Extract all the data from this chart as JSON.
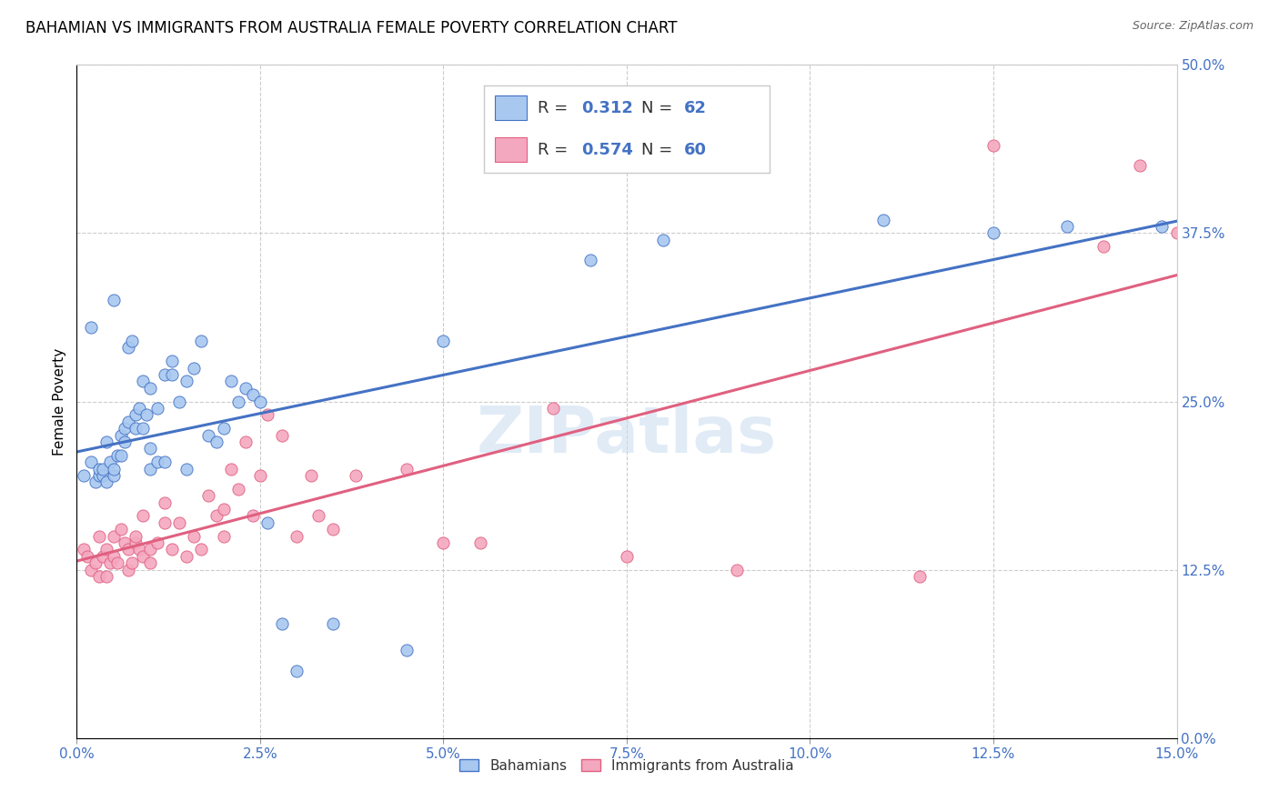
{
  "title": "BAHAMIAN VS IMMIGRANTS FROM AUSTRALIA FEMALE POVERTY CORRELATION CHART",
  "source": "Source: ZipAtlas.com",
  "xlabel_ticks": [
    "0.0%",
    "2.5%",
    "5.0%",
    "7.5%",
    "10.0%",
    "12.5%",
    "15.0%"
  ],
  "xlabel_vals": [
    0.0,
    2.5,
    5.0,
    7.5,
    10.0,
    12.5,
    15.0
  ],
  "ylabel_ticks": [
    "0.0%",
    "12.5%",
    "25.0%",
    "37.5%",
    "50.0%"
  ],
  "ylabel_vals": [
    0.0,
    12.5,
    25.0,
    37.5,
    50.0
  ],
  "xlim": [
    0.0,
    15.0
  ],
  "ylim": [
    0.0,
    50.0
  ],
  "watermark": "ZIPatlas",
  "ylabel_label": "Female Poverty",
  "legend_label1": "Bahamians",
  "legend_label2": "Immigrants from Australia",
  "r1": "0.312",
  "n1": "62",
  "r2": "0.574",
  "n2": "60",
  "color1": "#A8C8F0",
  "color2": "#F4A8C0",
  "line_color1": "#4472C4",
  "line_color2": "#E06080",
  "bahamian_x": [
    0.1,
    0.2,
    0.2,
    0.25,
    0.3,
    0.3,
    0.35,
    0.35,
    0.4,
    0.4,
    0.45,
    0.5,
    0.5,
    0.5,
    0.55,
    0.6,
    0.6,
    0.65,
    0.65,
    0.7,
    0.7,
    0.75,
    0.8,
    0.8,
    0.85,
    0.9,
    0.9,
    0.95,
    1.0,
    1.0,
    1.0,
    1.1,
    1.1,
    1.2,
    1.2,
    1.3,
    1.3,
    1.4,
    1.5,
    1.5,
    1.6,
    1.7,
    1.8,
    1.9,
    2.0,
    2.1,
    2.2,
    2.3,
    2.4,
    2.5,
    2.6,
    2.8,
    3.0,
    3.5,
    4.5,
    5.0,
    7.0,
    8.0,
    11.0,
    12.5,
    13.5,
    14.8
  ],
  "bahamian_y": [
    19.5,
    20.5,
    30.5,
    19.0,
    19.5,
    20.0,
    19.5,
    20.0,
    22.0,
    19.0,
    20.5,
    19.5,
    20.0,
    32.5,
    21.0,
    22.5,
    21.0,
    23.0,
    22.0,
    23.5,
    29.0,
    29.5,
    24.0,
    23.0,
    24.5,
    26.5,
    23.0,
    24.0,
    20.0,
    21.5,
    26.0,
    20.5,
    24.5,
    20.5,
    27.0,
    28.0,
    27.0,
    25.0,
    26.5,
    20.0,
    27.5,
    29.5,
    22.5,
    22.0,
    23.0,
    26.5,
    25.0,
    26.0,
    25.5,
    25.0,
    16.0,
    8.5,
    5.0,
    8.5,
    6.5,
    29.5,
    35.5,
    37.0,
    38.5,
    37.5,
    38.0,
    38.0
  ],
  "australia_x": [
    0.1,
    0.15,
    0.2,
    0.25,
    0.3,
    0.3,
    0.35,
    0.4,
    0.4,
    0.45,
    0.5,
    0.5,
    0.55,
    0.6,
    0.65,
    0.7,
    0.7,
    0.75,
    0.8,
    0.8,
    0.85,
    0.9,
    0.9,
    1.0,
    1.0,
    1.1,
    1.2,
    1.2,
    1.3,
    1.4,
    1.5,
    1.6,
    1.7,
    1.8,
    1.9,
    2.0,
    2.0,
    2.1,
    2.2,
    2.3,
    2.4,
    2.5,
    2.6,
    2.8,
    3.0,
    3.2,
    3.3,
    3.5,
    3.8,
    4.5,
    5.0,
    5.5,
    6.5,
    7.5,
    9.0,
    11.5,
    12.5,
    14.0,
    14.5,
    15.0
  ],
  "australia_y": [
    14.0,
    13.5,
    12.5,
    13.0,
    12.0,
    15.0,
    13.5,
    12.0,
    14.0,
    13.0,
    13.5,
    15.0,
    13.0,
    15.5,
    14.5,
    14.0,
    12.5,
    13.0,
    14.5,
    15.0,
    14.0,
    13.5,
    16.5,
    13.0,
    14.0,
    14.5,
    16.0,
    17.5,
    14.0,
    16.0,
    13.5,
    15.0,
    14.0,
    18.0,
    16.5,
    17.0,
    15.0,
    20.0,
    18.5,
    22.0,
    16.5,
    19.5,
    24.0,
    22.5,
    15.0,
    19.5,
    16.5,
    15.5,
    19.5,
    20.0,
    14.5,
    14.5,
    24.5,
    13.5,
    12.5,
    12.0,
    44.0,
    36.5,
    42.5,
    37.5
  ]
}
